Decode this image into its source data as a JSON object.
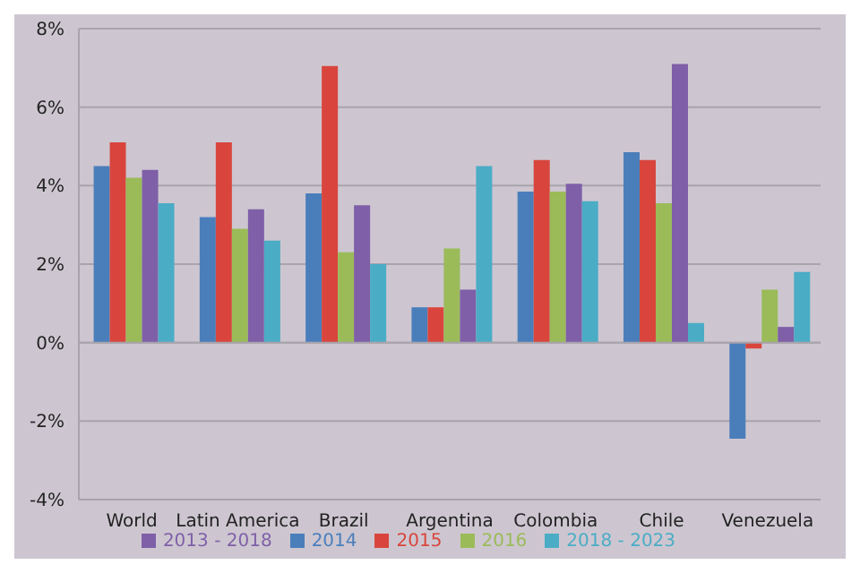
{
  "chart_data": {
    "type": "bar",
    "categories": [
      "World",
      "Latin America",
      "Brazil",
      "Argentina",
      "Colombia",
      "Chile",
      "Venezuela"
    ],
    "series": [
      {
        "name": "2014",
        "color": "#4a7ebb",
        "values": [
          4.5,
          3.2,
          3.8,
          0.9,
          3.85,
          4.85,
          -2.45
        ]
      },
      {
        "name": "2015",
        "color": "#d9453c",
        "values": [
          5.1,
          5.1,
          7.05,
          0.9,
          4.65,
          4.65,
          -0.15
        ]
      },
      {
        "name": "2016",
        "color": "#9bbb59",
        "values": [
          4.2,
          2.9,
          2.3,
          2.4,
          3.85,
          3.55,
          1.35
        ]
      },
      {
        "name": "2013 - 2018",
        "color": "#7f5fa8",
        "values": [
          4.4,
          3.4,
          3.5,
          1.35,
          4.05,
          7.1,
          0.4
        ]
      },
      {
        "name": "2018 - 2023",
        "color": "#4bacc6",
        "values": [
          3.55,
          2.6,
          2.0,
          4.5,
          3.6,
          0.5,
          1.8
        ]
      }
    ],
    "ylim": [
      -4,
      8
    ],
    "yticks": [
      {
        "value": -4,
        "label": "-4%"
      },
      {
        "value": -2,
        "label": "-2%"
      },
      {
        "value": 0,
        "label": "0%"
      },
      {
        "value": 2,
        "label": "2%"
      },
      {
        "value": 4,
        "label": "4%"
      },
      {
        "value": 6,
        "label": "6%"
      },
      {
        "value": 8,
        "label": "8%"
      }
    ],
    "grid": "y",
    "legend": "bottom"
  }
}
